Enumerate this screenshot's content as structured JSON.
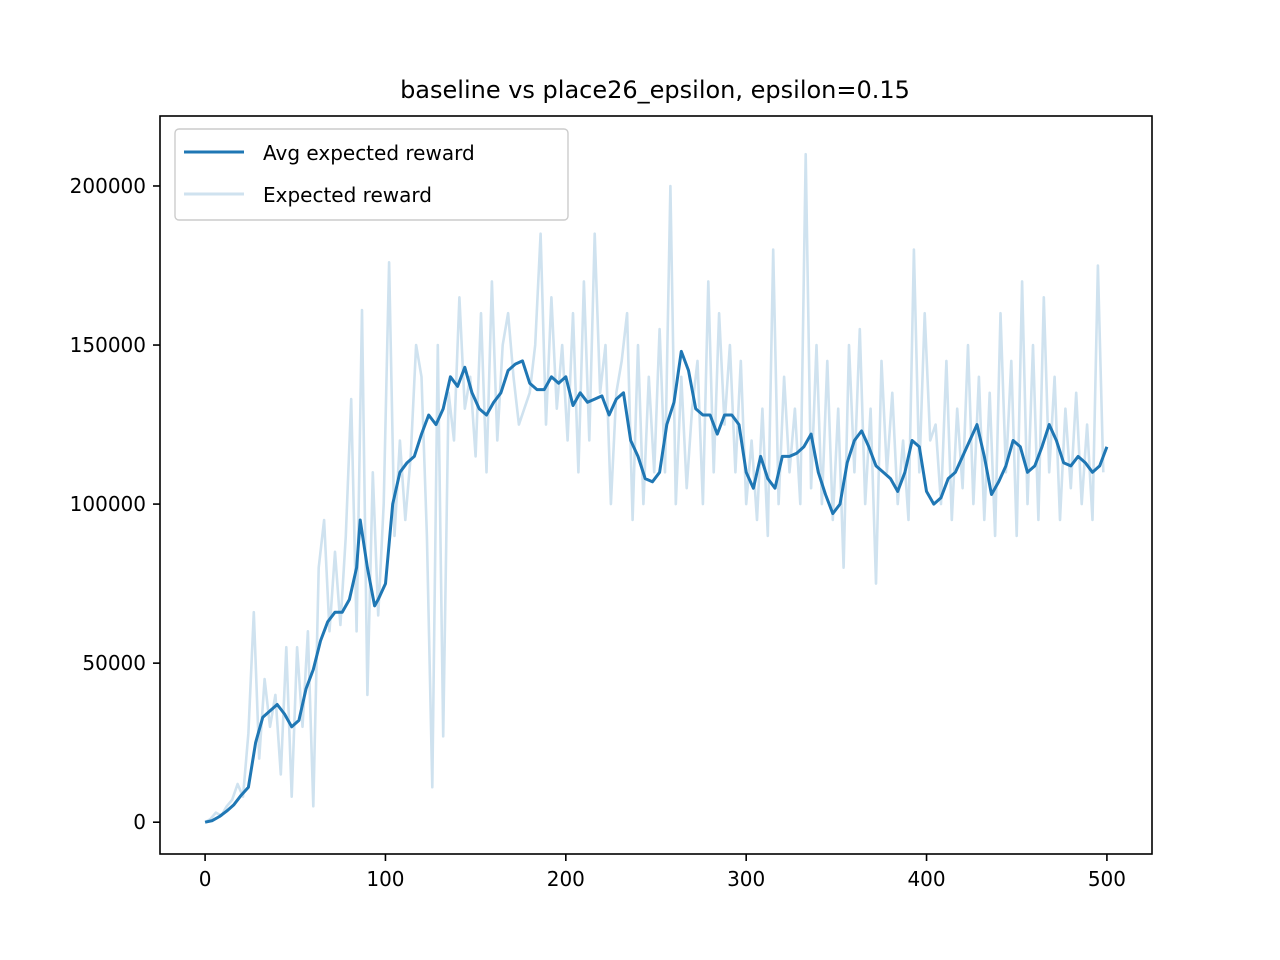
{
  "chart_data": {
    "type": "line",
    "title": "baseline vs place26_epsilon, epsilon=0.15",
    "xlabel": "",
    "ylabel": "",
    "xlim": [
      -25,
      525
    ],
    "ylim": [
      -10000,
      222000
    ],
    "x_ticks": [
      0,
      100,
      200,
      300,
      400,
      500
    ],
    "x_tick_labels": [
      "0",
      "100",
      "200",
      "300",
      "400",
      "500"
    ],
    "y_ticks": [
      0,
      50000,
      100000,
      150000,
      200000
    ],
    "y_tick_labels": [
      "0",
      "50000",
      "100000",
      "150000",
      "200000"
    ],
    "grid": false,
    "legend_position": "upper left",
    "series": [
      {
        "name": "Avg expected reward",
        "color": "#1f77b4",
        "style": "solid",
        "x": [
          0,
          4,
          8,
          12,
          16,
          20,
          24,
          28,
          32,
          36,
          40,
          44,
          48,
          52,
          56,
          60,
          64,
          68,
          72,
          76,
          80,
          84,
          86,
          90,
          94,
          96,
          100,
          104,
          108,
          112,
          116,
          120,
          124,
          128,
          132,
          136,
          140,
          144,
          148,
          152,
          156,
          160,
          164,
          168,
          172,
          176,
          180,
          184,
          188,
          192,
          196,
          200,
          204,
          208,
          212,
          216,
          220,
          224,
          228,
          232,
          236,
          240,
          244,
          248,
          252,
          256,
          260,
          264,
          268,
          272,
          276,
          280,
          284,
          288,
          292,
          296,
          300,
          304,
          308,
          312,
          316,
          320,
          324,
          328,
          332,
          336,
          340,
          344,
          348,
          352,
          356,
          360,
          364,
          368,
          372,
          376,
          380,
          384,
          388,
          392,
          396,
          400,
          404,
          408,
          412,
          416,
          420,
          424,
          428,
          432,
          436,
          440,
          444,
          448,
          452,
          456,
          460,
          464,
          468,
          472,
          476,
          480,
          484,
          488,
          492,
          496,
          500
        ],
        "y": [
          0,
          500,
          1800,
          3500,
          5500,
          8500,
          11000,
          25000,
          33000,
          35000,
          37000,
          34000,
          30000,
          32000,
          42000,
          48000,
          57000,
          63000,
          66000,
          66000,
          70000,
          80000,
          95000,
          80000,
          68000,
          70000,
          75000,
          100000,
          110000,
          113000,
          115000,
          122000,
          128000,
          125000,
          130000,
          140000,
          137000,
          143000,
          135000,
          130000,
          128000,
          132000,
          135000,
          142000,
          144000,
          145000,
          138000,
          136000,
          136000,
          140000,
          138000,
          140000,
          131000,
          135000,
          132000,
          133000,
          134000,
          128000,
          133000,
          135000,
          120000,
          115000,
          108000,
          107000,
          110000,
          125000,
          132000,
          148000,
          142000,
          130000,
          128000,
          128000,
          122000,
          128000,
          128000,
          125000,
          110000,
          105000,
          115000,
          108000,
          105000,
          115000,
          115000,
          116000,
          118000,
          122000,
          110000,
          103000,
          97000,
          100000,
          113000,
          120000,
          123000,
          118000,
          112000,
          110000,
          108000,
          104000,
          110000,
          120000,
          118000,
          104000,
          100000,
          102000,
          108000,
          110000,
          115000,
          120000,
          125000,
          115000,
          103000,
          107000,
          112000,
          120000,
          118000,
          110000,
          112000,
          118000,
          125000,
          120000,
          113000,
          112000,
          115000,
          113000,
          110000,
          112000,
          118000
        ]
      },
      {
        "name": "Expected reward",
        "color": "#cfe2ef",
        "style": "solid",
        "x": [
          0,
          3,
          6,
          9,
          12,
          15,
          18,
          21,
          24,
          27,
          30,
          33,
          36,
          39,
          42,
          45,
          48,
          51,
          54,
          57,
          60,
          63,
          66,
          69,
          72,
          75,
          78,
          81,
          84,
          87,
          90,
          93,
          96,
          99,
          102,
          105,
          108,
          111,
          114,
          117,
          120,
          123,
          126,
          129,
          132,
          135,
          138,
          141,
          144,
          147,
          150,
          153,
          156,
          159,
          162,
          165,
          168,
          171,
          174,
          177,
          180,
          183,
          186,
          189,
          192,
          195,
          198,
          201,
          204,
          207,
          210,
          213,
          216,
          219,
          222,
          225,
          228,
          231,
          234,
          237,
          240,
          243,
          246,
          249,
          252,
          255,
          258,
          261,
          264,
          267,
          270,
          273,
          276,
          279,
          282,
          285,
          288,
          291,
          294,
          297,
          300,
          303,
          306,
          309,
          312,
          315,
          318,
          321,
          324,
          327,
          330,
          333,
          336,
          339,
          342,
          345,
          348,
          351,
          354,
          357,
          360,
          363,
          366,
          369,
          372,
          375,
          378,
          381,
          384,
          387,
          390,
          393,
          396,
          399,
          402,
          405,
          408,
          411,
          414,
          417,
          420,
          423,
          426,
          429,
          432,
          435,
          438,
          441,
          444,
          447,
          450,
          453,
          456,
          459,
          462,
          465,
          468,
          471,
          474,
          477,
          480,
          483,
          486,
          489,
          492,
          495,
          498
        ],
        "y": [
          0,
          1000,
          3000,
          2000,
          5000,
          7000,
          12000,
          8000,
          28000,
          66000,
          20000,
          45000,
          30000,
          40000,
          15000,
          55000,
          8000,
          55000,
          30000,
          60000,
          5000,
          80000,
          95000,
          60000,
          85000,
          62000,
          90000,
          133000,
          60000,
          161000,
          40000,
          110000,
          65000,
          100000,
          176000,
          90000,
          120000,
          95000,
          115000,
          150000,
          140000,
          90000,
          11000,
          150000,
          27000,
          135000,
          120000,
          165000,
          130000,
          140000,
          115000,
          160000,
          110000,
          170000,
          120000,
          150000,
          160000,
          140000,
          125000,
          130000,
          135000,
          150000,
          185000,
          125000,
          165000,
          130000,
          150000,
          120000,
          160000,
          110000,
          170000,
          120000,
          185000,
          135000,
          150000,
          100000,
          135000,
          145000,
          160000,
          95000,
          150000,
          100000,
          140000,
          110000,
          155000,
          110000,
          200000,
          100000,
          140000,
          105000,
          130000,
          145000,
          100000,
          170000,
          110000,
          160000,
          125000,
          150000,
          110000,
          145000,
          100000,
          120000,
          95000,
          130000,
          90000,
          180000,
          100000,
          140000,
          110000,
          130000,
          100000,
          210000,
          105000,
          150000,
          100000,
          145000,
          95000,
          130000,
          80000,
          150000,
          110000,
          155000,
          100000,
          130000,
          75000,
          145000,
          110000,
          135000,
          100000,
          120000,
          95000,
          180000,
          110000,
          160000,
          120000,
          125000,
          100000,
          145000,
          95000,
          130000,
          105000,
          150000,
          100000,
          140000,
          95000,
          135000,
          90000,
          160000,
          110000,
          145000,
          90000,
          170000,
          100000,
          150000,
          95000,
          165000,
          110000,
          140000,
          95000,
          130000,
          105000,
          135000,
          100000,
          125000,
          95000,
          175000,
          110000
        ]
      }
    ]
  }
}
